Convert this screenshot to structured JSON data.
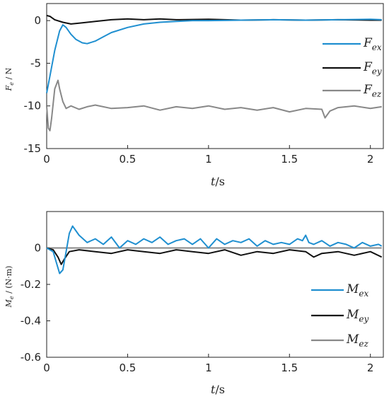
{
  "chart_data": [
    {
      "type": "line",
      "ylabel": "F_e / N",
      "xlabel": "t/s",
      "xlim": [
        0,
        2.08
      ],
      "ylim": [
        -15,
        2
      ],
      "xticks": [
        "0",
        "0.5",
        "1",
        "1.5",
        "2"
      ],
      "yticks": [
        "0",
        "-5",
        "-10",
        "-15"
      ],
      "legend_position": "right",
      "series": [
        {
          "name": "F_ex",
          "color": "#1f8fd0",
          "x": [
            0,
            0.02,
            0.05,
            0.08,
            0.1,
            0.12,
            0.15,
            0.18,
            0.22,
            0.25,
            0.3,
            0.35,
            0.4,
            0.5,
            0.6,
            0.7,
            0.8,
            0.9,
            1.0,
            1.2,
            1.4,
            1.6,
            1.8,
            2.0,
            2.07
          ],
          "y": [
            -8.5,
            -6.5,
            -3.5,
            -1.2,
            -0.5,
            -0.8,
            -1.6,
            -2.2,
            -2.6,
            -2.7,
            -2.4,
            -1.9,
            -1.4,
            -0.8,
            -0.4,
            -0.2,
            -0.1,
            0.0,
            0.0,
            0.05,
            0.1,
            0.05,
            0.1,
            0.15,
            0.1
          ]
        },
        {
          "name": "F_ey",
          "color": "#111111",
          "x": [
            0,
            0.02,
            0.05,
            0.1,
            0.15,
            0.2,
            0.3,
            0.4,
            0.5,
            0.6,
            0.7,
            0.8,
            1.0,
            1.2,
            1.4,
            1.6,
            1.8,
            2.0,
            2.07
          ],
          "y": [
            0.6,
            0.5,
            0.1,
            -0.2,
            -0.4,
            -0.3,
            -0.1,
            0.1,
            0.2,
            0.1,
            0.2,
            0.1,
            0.15,
            0.05,
            0.1,
            0.05,
            0.1,
            0.05,
            0.05
          ]
        },
        {
          "name": "F_ez",
          "color": "#888888",
          "x": [
            0,
            0.01,
            0.02,
            0.03,
            0.05,
            0.07,
            0.08,
            0.1,
            0.12,
            0.15,
            0.2,
            0.25,
            0.3,
            0.4,
            0.5,
            0.6,
            0.7,
            0.8,
            0.9,
            1.0,
            1.1,
            1.2,
            1.3,
            1.4,
            1.5,
            1.6,
            1.7,
            1.72,
            1.75,
            1.8,
            1.9,
            2.0,
            2.07
          ],
          "y": [
            -10.0,
            -12.6,
            -12.9,
            -11.5,
            -8.0,
            -7.0,
            -8.0,
            -9.5,
            -10.3,
            -10.0,
            -10.4,
            -10.1,
            -9.9,
            -10.3,
            -10.2,
            -10.0,
            -10.5,
            -10.1,
            -10.3,
            -10.0,
            -10.4,
            -10.2,
            -10.5,
            -10.2,
            -10.7,
            -10.3,
            -10.4,
            -11.4,
            -10.6,
            -10.2,
            -10.0,
            -10.3,
            -10.1
          ]
        }
      ]
    },
    {
      "type": "line",
      "ylabel": "M_e / (N·m)",
      "xlabel": "t/s",
      "xlim": [
        0,
        2.08
      ],
      "ylim": [
        -0.6,
        0.2
      ],
      "xticks": [
        "0",
        "0.5",
        "1",
        "1.5",
        "2"
      ],
      "yticks": [
        "0",
        "-0.2",
        "-0.4",
        "-0.6"
      ],
      "legend_position": "right",
      "series": [
        {
          "name": "M_ex",
          "color": "#1f8fd0",
          "x": [
            0,
            0.04,
            0.06,
            0.08,
            0.1,
            0.12,
            0.14,
            0.16,
            0.2,
            0.25,
            0.3,
            0.35,
            0.4,
            0.45,
            0.5,
            0.55,
            0.6,
            0.65,
            0.7,
            0.75,
            0.8,
            0.85,
            0.9,
            0.95,
            1.0,
            1.05,
            1.1,
            1.15,
            1.2,
            1.25,
            1.3,
            1.35,
            1.4,
            1.45,
            1.5,
            1.55,
            1.58,
            1.6,
            1.62,
            1.65,
            1.7,
            1.75,
            1.8,
            1.85,
            1.9,
            1.95,
            2.0,
            2.05,
            2.07
          ],
          "y": [
            0.0,
            -0.02,
            -0.08,
            -0.14,
            -0.12,
            -0.02,
            0.08,
            0.12,
            0.07,
            0.03,
            0.05,
            0.02,
            0.06,
            0.0,
            0.04,
            0.02,
            0.05,
            0.03,
            0.06,
            0.02,
            0.04,
            0.05,
            0.02,
            0.05,
            0.0,
            0.05,
            0.02,
            0.04,
            0.03,
            0.05,
            0.01,
            0.04,
            0.02,
            0.03,
            0.02,
            0.05,
            0.04,
            0.07,
            0.03,
            0.02,
            0.04,
            0.01,
            0.03,
            0.02,
            0.0,
            0.03,
            0.01,
            0.02,
            0.01
          ]
        },
        {
          "name": "M_ey",
          "color": "#111111",
          "x": [
            0,
            0.04,
            0.07,
            0.09,
            0.11,
            0.14,
            0.2,
            0.3,
            0.4,
            0.5,
            0.6,
            0.7,
            0.8,
            0.9,
            1.0,
            1.1,
            1.2,
            1.3,
            1.4,
            1.5,
            1.6,
            1.65,
            1.7,
            1.8,
            1.9,
            2.0,
            2.07
          ],
          "y": [
            0.0,
            -0.01,
            -0.05,
            -0.09,
            -0.06,
            -0.02,
            -0.01,
            -0.02,
            -0.03,
            -0.01,
            -0.02,
            -0.03,
            -0.01,
            -0.02,
            -0.03,
            -0.01,
            -0.04,
            -0.02,
            -0.03,
            -0.01,
            -0.02,
            -0.05,
            -0.03,
            -0.02,
            -0.04,
            -0.02,
            -0.05
          ]
        },
        {
          "name": "M_ez",
          "color": "#888888",
          "x": [
            0,
            0.2,
            0.4,
            0.6,
            0.8,
            1.0,
            1.2,
            1.4,
            1.6,
            1.8,
            2.0,
            2.07
          ],
          "y": [
            0.0,
            0.0,
            0.0,
            0.0,
            0.0,
            0.0,
            0.0,
            0.0,
            0.0,
            0.0,
            0.0,
            0.0
          ]
        }
      ]
    }
  ]
}
